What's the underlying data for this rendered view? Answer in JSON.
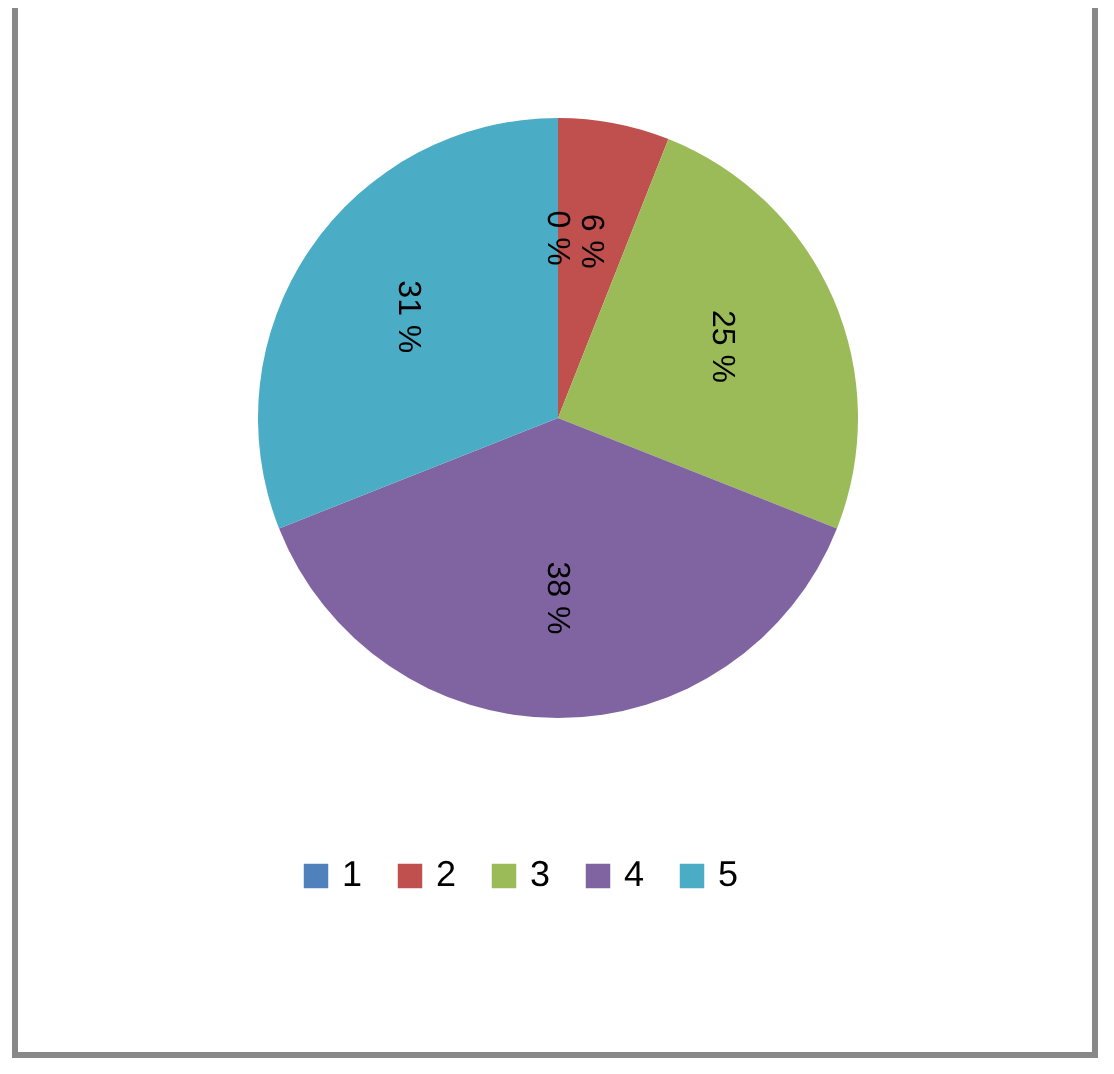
{
  "chart_data": {
    "type": "pie",
    "categories": [
      "1",
      "2",
      "3",
      "4",
      "5"
    ],
    "values": [
      0,
      6,
      25,
      38,
      31
    ],
    "colors": [
      "#4f81bd",
      "#c0504d",
      "#9bbb59",
      "#8064a2",
      "#4bacc6"
    ],
    "value_labels": [
      "0 %",
      "6 %",
      "25 %",
      "38 %",
      "31 %"
    ],
    "legend": "bottom"
  }
}
